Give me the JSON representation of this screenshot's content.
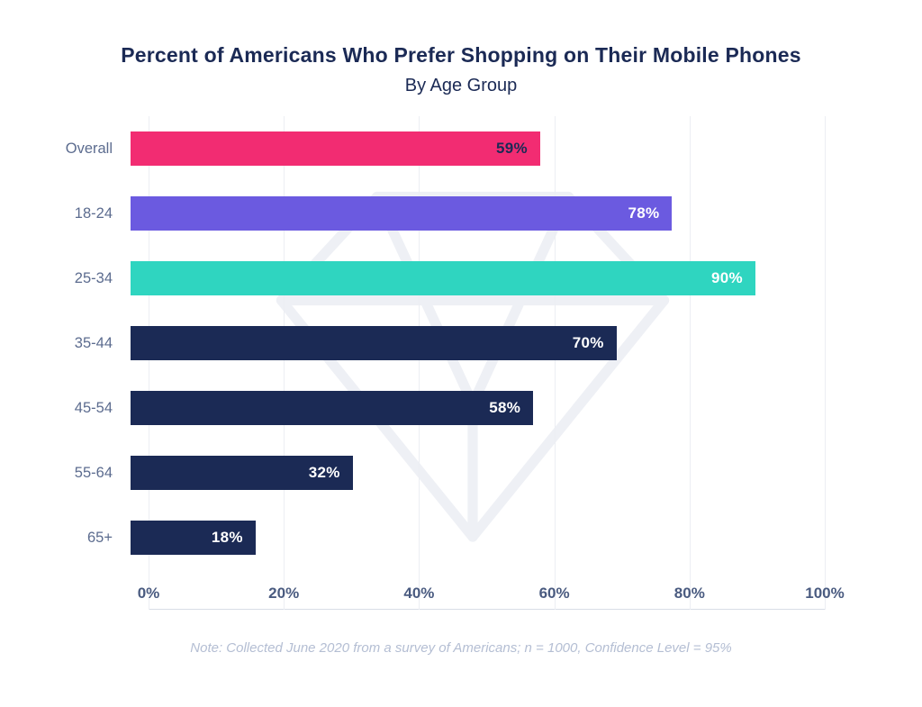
{
  "header": {
    "title": "Percent of Americans Who Prefer Shopping on Their Mobile Phones",
    "subtitle": "By Age Group"
  },
  "footer": {
    "note": "Note: Collected June 2020 from a survey of Americans; n = 1000, Confidence Level = 95%"
  },
  "colors": {
    "title": "#1B2A55",
    "category": "#5C6C8F",
    "tick": "#4A5B80",
    "note": "#B4BED3",
    "grid": "#ECEEF3",
    "axis": "#D9DEE6",
    "watermark": "#EEF0F5"
  },
  "chart_data": {
    "type": "bar",
    "orientation": "horizontal",
    "title": "Percent of Americans Who Prefer Shopping on Their Mobile Phones",
    "subtitle": "By Age Group",
    "categories": [
      "Overall",
      "18-24",
      "25-34",
      "35-44",
      "45-54",
      "55-64",
      "65+"
    ],
    "values": [
      59,
      78,
      90,
      70,
      58,
      32,
      18
    ],
    "value_labels": [
      "59%",
      "78%",
      "90%",
      "70%",
      "58%",
      "32%",
      "18%"
    ],
    "bar_colors": [
      "#F22C72",
      "#6B5AE0",
      "#2FD5C0",
      "#1B2A55",
      "#1B2A55",
      "#1B2A55",
      "#1B2A55"
    ],
    "value_label_colors": [
      "#1B2A55",
      "#ffffff",
      "#ffffff",
      "#ffffff",
      "#ffffff",
      "#ffffff",
      "#ffffff"
    ],
    "xlim": [
      0,
      100
    ],
    "x_tick_values": [
      0,
      20,
      40,
      60,
      80,
      100
    ],
    "x_tick_labels": [
      "0%",
      "20%",
      "40%",
      "60%",
      "80%",
      "100%"
    ],
    "grid": true,
    "legend": "none",
    "watermark": "diamond-gem-outline"
  }
}
